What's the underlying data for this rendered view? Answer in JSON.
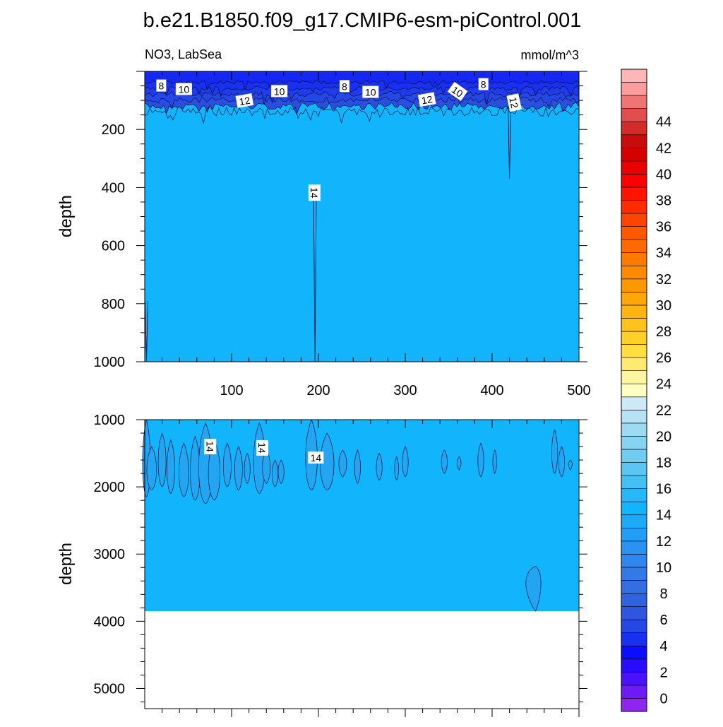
{
  "figure": {
    "title": "b.e21.B1850.f09_g17.CMIP6-esm-piControl.001",
    "variable_label": "NO3, LabSea",
    "units_label": "mmol/m^3"
  },
  "chart_data": [
    {
      "type": "contour",
      "panel": "upper",
      "xlabel": "",
      "ylabel": "depth",
      "xlim": [
        0,
        500
      ],
      "ylim": [
        1000,
        0
      ],
      "y_inverted": true,
      "xticks": [
        100,
        200,
        300,
        400,
        500
      ],
      "yticks": [
        200,
        400,
        600,
        800,
        1000
      ],
      "fill_value": 14,
      "contour_labels": [
        {
          "text": "8",
          "x": 19,
          "y": 50
        },
        {
          "text": "10",
          "x": 45,
          "y": 62
        },
        {
          "text": "12",
          "x": 115,
          "y": 102
        },
        {
          "text": "10",
          "x": 155,
          "y": 69
        },
        {
          "text": "8",
          "x": 230,
          "y": 52
        },
        {
          "text": "10",
          "x": 260,
          "y": 72
        },
        {
          "text": "12",
          "x": 325,
          "y": 98
        },
        {
          "text": "10",
          "x": 360,
          "y": 70
        },
        {
          "text": "8",
          "x": 390,
          "y": 45
        },
        {
          "text": "12",
          "x": 425,
          "y": 108
        },
        {
          "text": "14",
          "x": 195,
          "y": 418
        }
      ]
    },
    {
      "type": "contour",
      "panel": "lower",
      "xlabel": "",
      "ylabel": "depth",
      "xlim": [
        0,
        500
      ],
      "ylim": [
        5300,
        1000
      ],
      "y_inverted": true,
      "yticks": [
        1000,
        2000,
        3000,
        4000,
        5000
      ],
      "fill_value": 14,
      "bottom_depth": 3850,
      "contour_labels": [
        {
          "text": "14",
          "x": 75,
          "y": 1400
        },
        {
          "text": "14",
          "x": 135,
          "y": 1420
        },
        {
          "text": "14",
          "x": 197,
          "y": 1570
        }
      ]
    }
  ],
  "colorbar": {
    "labels": [
      "0",
      "2",
      "4",
      "6",
      "8",
      "10",
      "12",
      "14",
      "16",
      "18",
      "20",
      "22",
      "24",
      "26",
      "28",
      "30",
      "32",
      "34",
      "36",
      "38",
      "40",
      "42",
      "44"
    ],
    "colors": [
      "#8f26f0",
      "#6d1cf5",
      "#4a12fa",
      "#2a0cfc",
      "#0c0cff",
      "#1830f0",
      "#2448e6",
      "#2d57de",
      "#3162de",
      "#336ee3",
      "#327ae8",
      "#2f86ee",
      "#2a92f2",
      "#239ef6",
      "#1caaf9",
      "#12b5fb",
      "#26b8f9",
      "#46bff4",
      "#5cc6f2",
      "#71ccf1",
      "#87d3f2",
      "#9fdaf3",
      "#b6e2f4",
      "#cbe9f6",
      "#ffffc4",
      "#fff4a0",
      "#ffea70",
      "#ffde40",
      "#ffd02a",
      "#ffc21c",
      "#ffb410",
      "#ffa608",
      "#ff9800",
      "#ff8a00",
      "#ff7a00",
      "#ff6a00",
      "#ff5800",
      "#ff4400",
      "#ff2c00",
      "#ff1400",
      "#fb0000",
      "#e80000",
      "#d40000",
      "#c80c0c",
      "#d42a2a",
      "#e24e4e",
      "#ef7474",
      "#fc9c9c",
      "#ffb6b6"
    ],
    "fill_color": "#12b5fb"
  }
}
